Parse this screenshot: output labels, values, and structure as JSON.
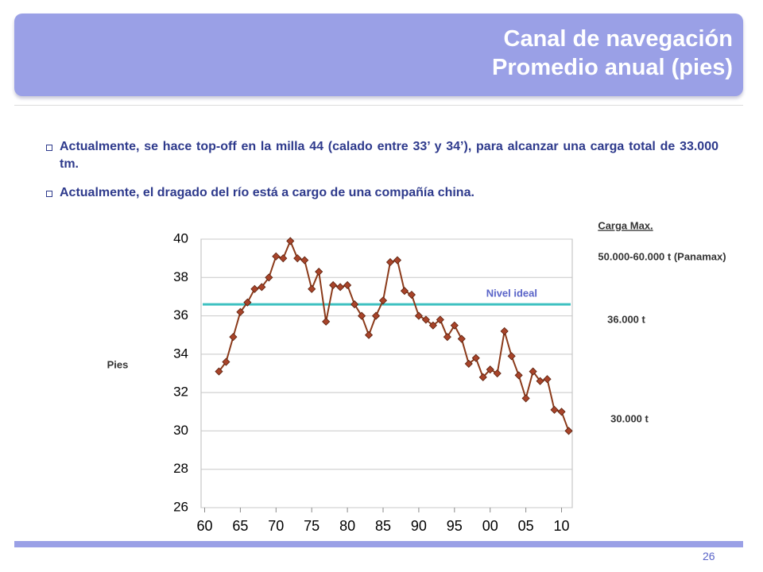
{
  "header": {
    "title": [
      "Canal de navegación",
      "Promedio anual (pies)"
    ]
  },
  "bullets": [
    "Actualmente, se hace top-off en la milla 44 (calado entre 33’ y 34’), para alcanzar una carga total de 33.000 tm.",
    "Actualmente, el dragado del río está a cargo de una compañía china."
  ],
  "page_number": "26",
  "chart_data": {
    "type": "line",
    "y_label": "Pies",
    "x": [
      1962,
      1963,
      1964,
      1965,
      1966,
      1967,
      1968,
      1969,
      1970,
      1971,
      1972,
      1973,
      1974,
      1975,
      1976,
      1977,
      1978,
      1979,
      1980,
      1981,
      1982,
      1983,
      1984,
      1985,
      1986,
      1987,
      1988,
      1989,
      1990,
      1991,
      1992,
      1993,
      1994,
      1995,
      1996,
      1997,
      1998,
      1999,
      2000,
      2001,
      2002,
      2003,
      2004,
      2005,
      2006,
      2007,
      2008,
      2009,
      2010,
      2011
    ],
    "values": [
      33.1,
      33.6,
      34.9,
      36.2,
      36.7,
      37.4,
      37.5,
      38.0,
      39.1,
      39.0,
      39.9,
      39.0,
      38.9,
      37.4,
      38.3,
      35.7,
      37.6,
      37.5,
      37.6,
      36.6,
      36.0,
      35.0,
      36.0,
      36.8,
      38.8,
      38.9,
      37.3,
      37.1,
      36.0,
      35.8,
      35.5,
      35.8,
      34.9,
      35.5,
      34.8,
      33.5,
      33.8,
      32.8,
      33.2,
      33.0,
      35.2,
      33.9,
      32.9,
      31.7,
      33.1,
      32.6,
      32.7,
      31.1,
      31.0,
      30.0
    ],
    "color": "#8b3a1a",
    "marker_color": "#a8442a",
    "xlim": [
      1959.5,
      2011.5
    ],
    "ylim": [
      26,
      40
    ],
    "xticks": [
      {
        "value": 1960,
        "label": "60"
      },
      {
        "value": 1965,
        "label": "65"
      },
      {
        "value": 1970,
        "label": "70"
      },
      {
        "value": 1975,
        "label": "75"
      },
      {
        "value": 1980,
        "label": "80"
      },
      {
        "value": 1985,
        "label": "85"
      },
      {
        "value": 1990,
        "label": "90"
      },
      {
        "value": 1995,
        "label": "95"
      },
      {
        "value": 2000,
        "label": "00"
      },
      {
        "value": 2005,
        "label": "05"
      },
      {
        "value": 2010,
        "label": "10"
      }
    ],
    "yticks": [
      26,
      28,
      30,
      32,
      34,
      36,
      38,
      40
    ],
    "grid": true,
    "reference_line": {
      "label": "Nivel ideal",
      "value": 36.6,
      "color": "#3cc0c0"
    },
    "annotations": [
      "Carga Max.",
      "50.000-60.000 t (Panamax)",
      "36.000 t",
      "30.000 t"
    ]
  }
}
